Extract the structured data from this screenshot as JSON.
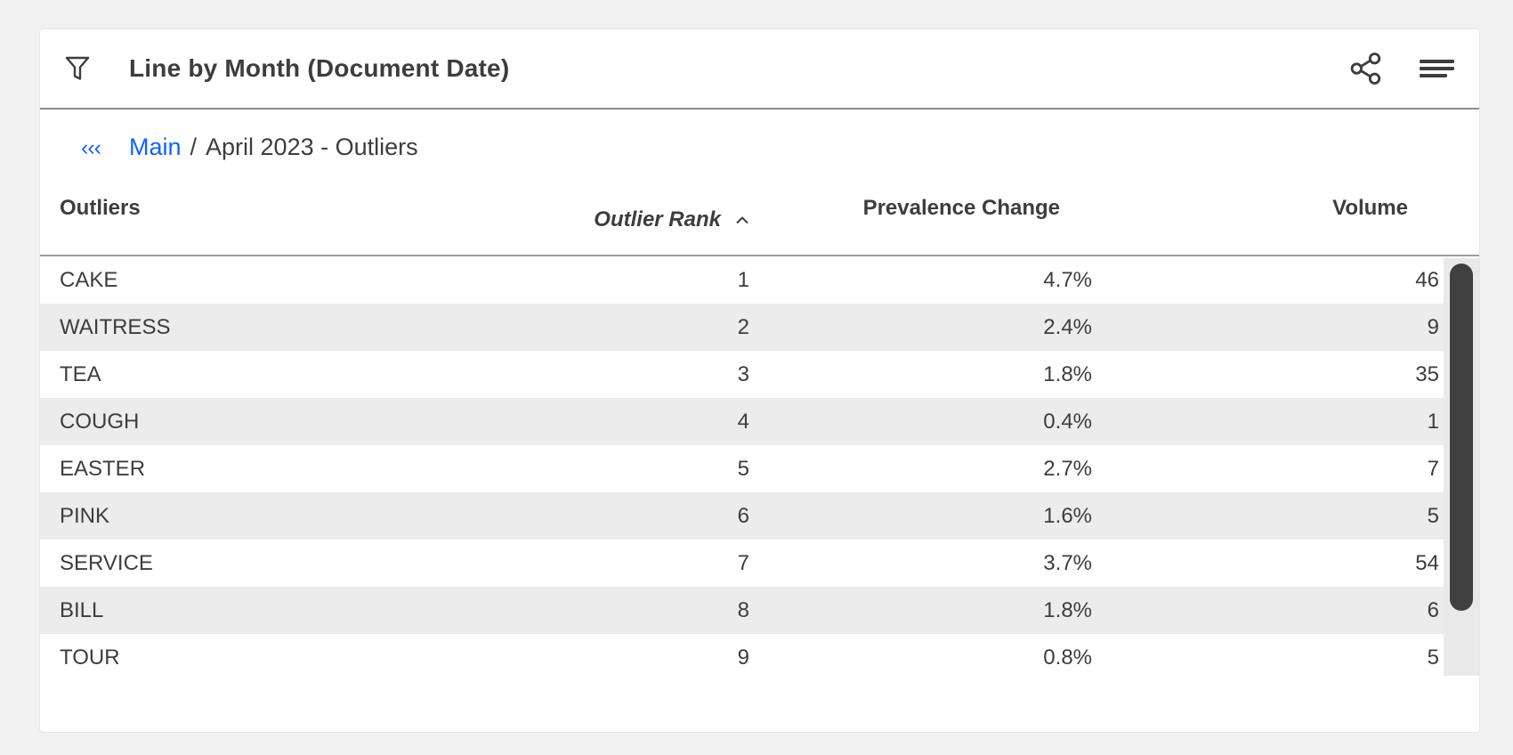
{
  "panel": {
    "title": "Line by Month (Document Date)",
    "icons": {
      "left": "filter-icon",
      "right": [
        "share-icon",
        "menu-icon"
      ]
    }
  },
  "breadcrumb": {
    "back": "‹‹‹",
    "root": "Main",
    "separator": "/",
    "current": "April 2023 - Outliers"
  },
  "table": {
    "columns": [
      {
        "label": "Outliers",
        "align": "left"
      },
      {
        "label": "Outlier Rank",
        "align": "right",
        "sorted": "asc"
      },
      {
        "label": "Prevalence Change",
        "align": "right"
      },
      {
        "label": "Volume",
        "align": "right"
      }
    ],
    "sort": {
      "column": "Outlier Rank",
      "direction": "ascending"
    },
    "rows": [
      {
        "outlier": "CAKE",
        "rank": "1",
        "prevalence_change": "4.7%",
        "volume": "46"
      },
      {
        "outlier": "WAITRESS",
        "rank": "2",
        "prevalence_change": "2.4%",
        "volume": "9"
      },
      {
        "outlier": "TEA",
        "rank": "3",
        "prevalence_change": "1.8%",
        "volume": "35"
      },
      {
        "outlier": "COUGH",
        "rank": "4",
        "prevalence_change": "0.4%",
        "volume": "1"
      },
      {
        "outlier": "EASTER",
        "rank": "5",
        "prevalence_change": "2.7%",
        "volume": "7"
      },
      {
        "outlier": "PINK",
        "rank": "6",
        "prevalence_change": "1.6%",
        "volume": "5"
      },
      {
        "outlier": "SERVICE",
        "rank": "7",
        "prevalence_change": "3.7%",
        "volume": "54"
      },
      {
        "outlier": "BILL",
        "rank": "8",
        "prevalence_change": "1.8%",
        "volume": "6"
      },
      {
        "outlier": "TOUR",
        "rank": "9",
        "prevalence_change": "0.8%",
        "volume": "5"
      }
    ]
  },
  "colors": {
    "link_blue": "#0f62fe",
    "text": "#3d3d3d",
    "row_alt": "#ececec",
    "divider": "#8d8d8d",
    "scroll_track": "#e9e9e9",
    "scroll_thumb": "#404040",
    "page_background": "#f1f1f2"
  }
}
